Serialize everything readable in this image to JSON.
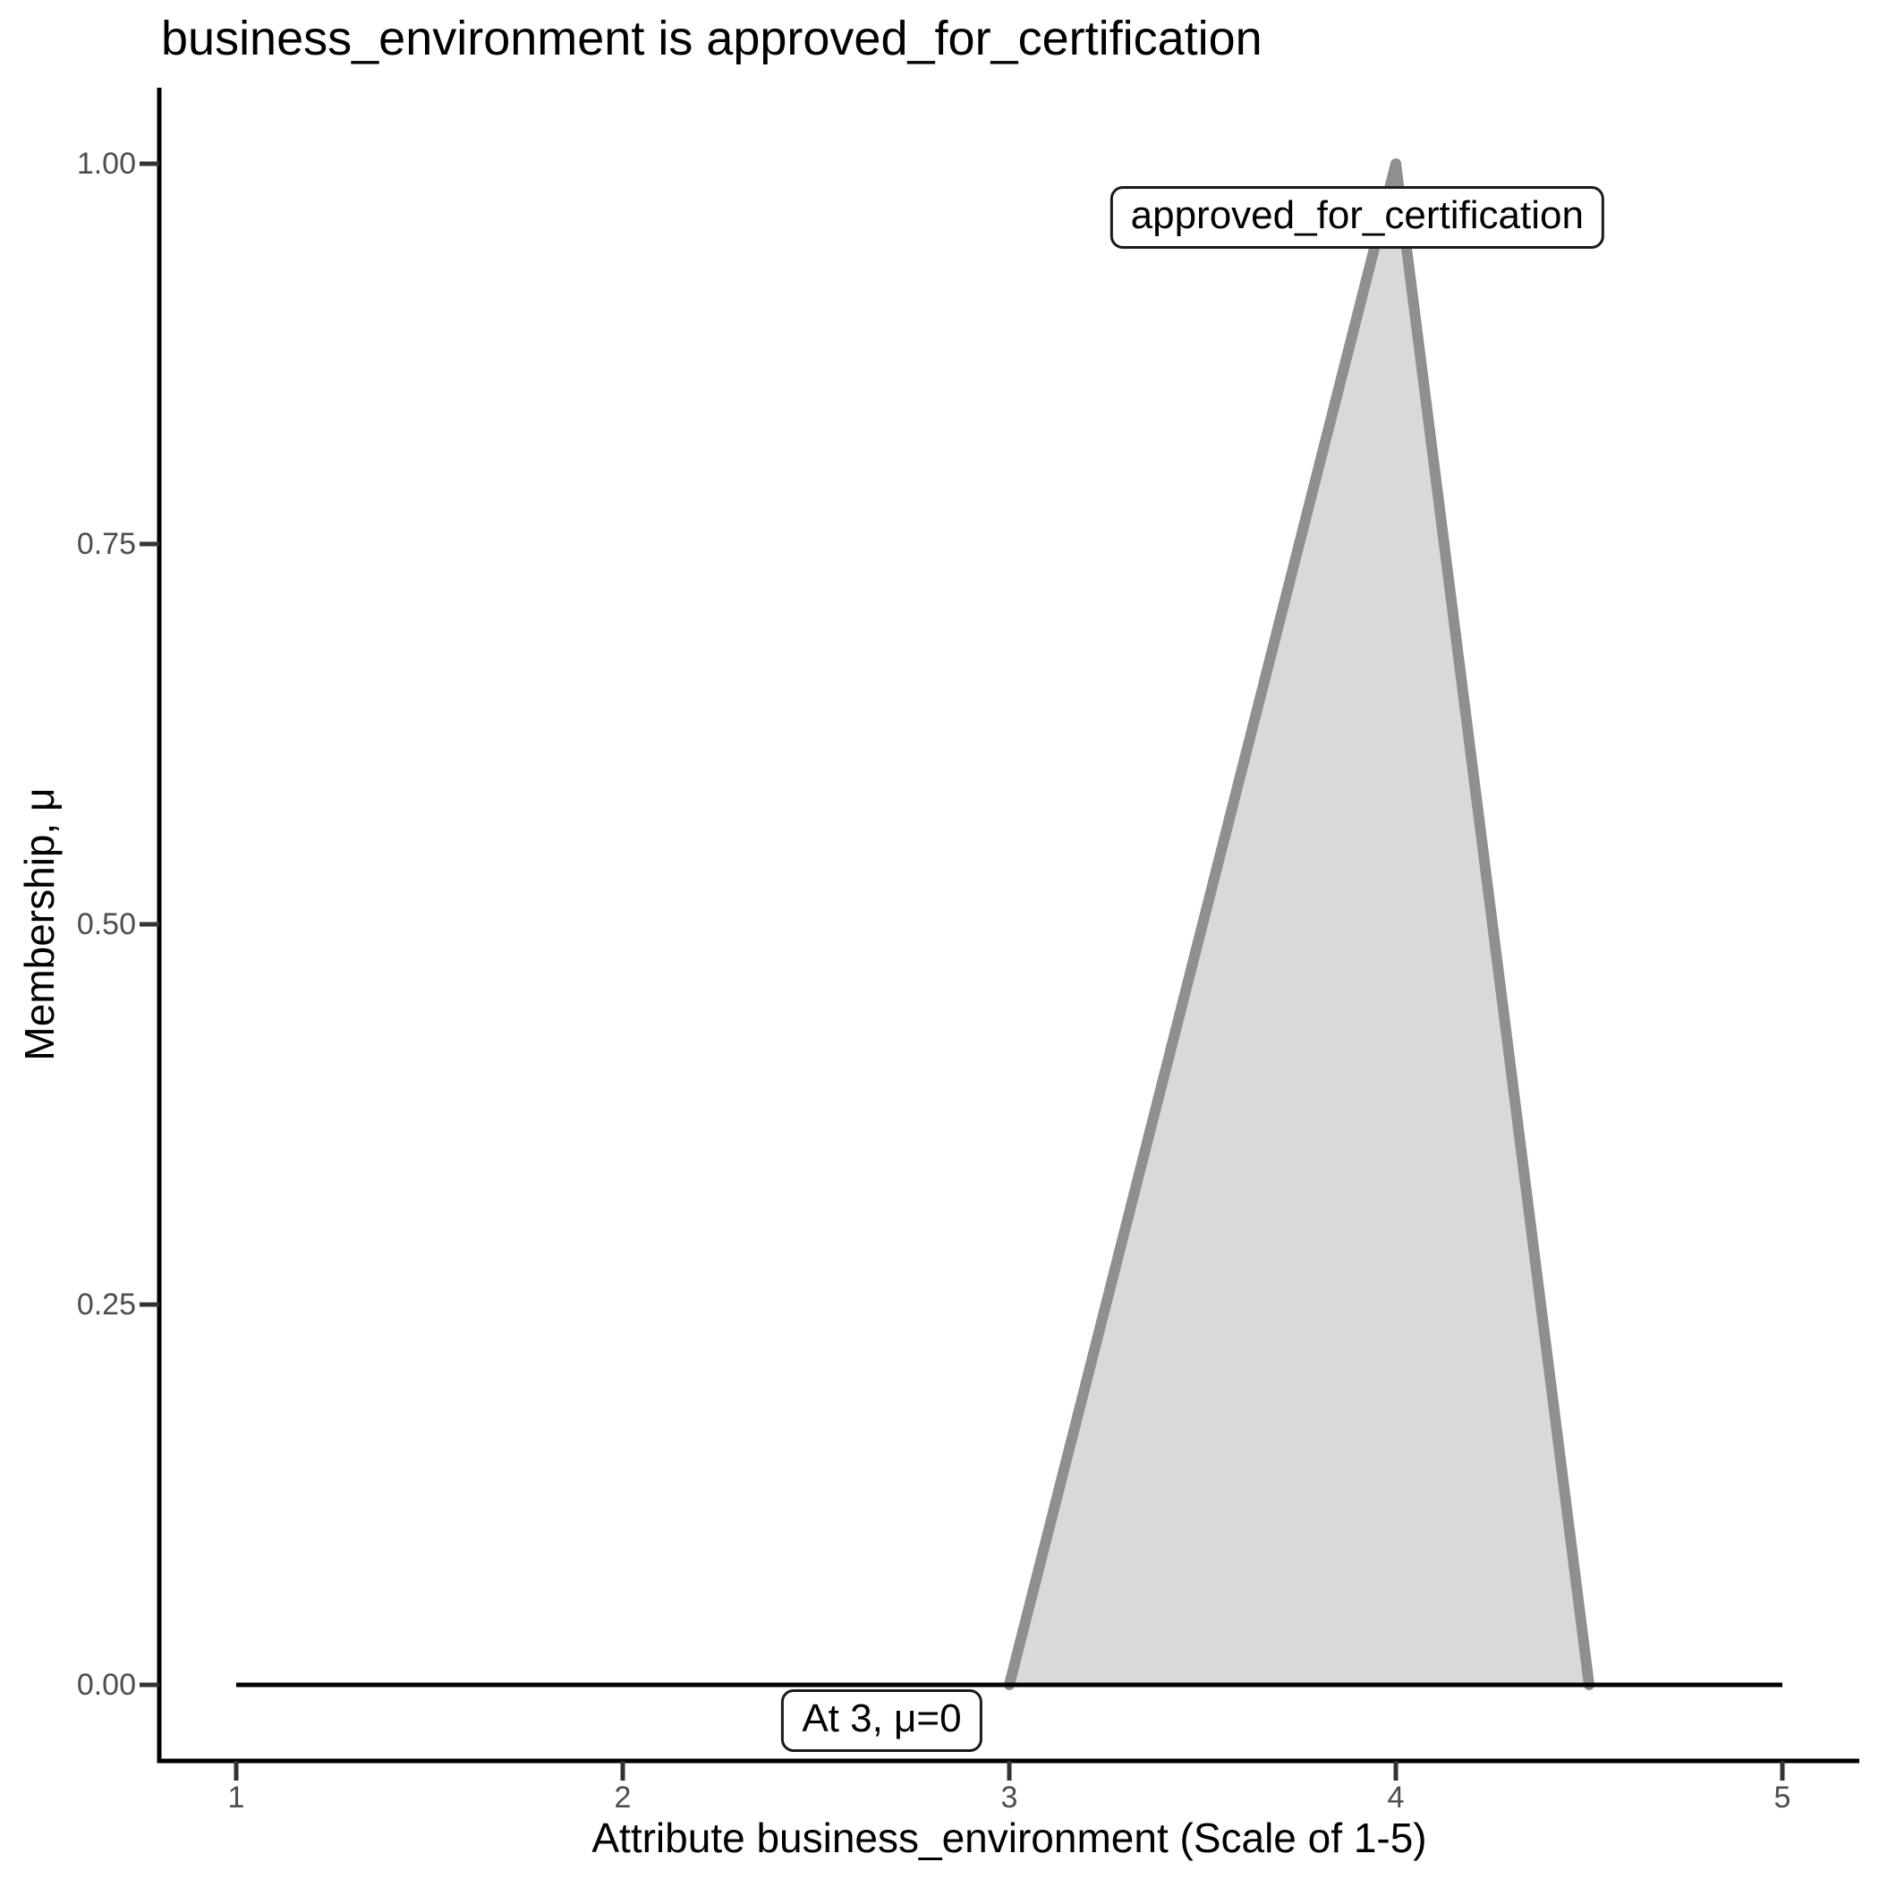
{
  "chart_data": {
    "type": "area",
    "title": "business_environment is approved_for_certification",
    "xlabel": "Attribute business_environment (Scale of 1-5)",
    "ylabel": "Membership, μ",
    "xlim": [
      1,
      5
    ],
    "ylim": [
      0,
      1
    ],
    "grid": false,
    "legend": false,
    "x_ticks": [
      {
        "v": 1,
        "label": "1"
      },
      {
        "v": 2,
        "label": "2"
      },
      {
        "v": 3,
        "label": "3"
      },
      {
        "v": 4,
        "label": "4"
      },
      {
        "v": 5,
        "label": "5"
      }
    ],
    "y_ticks": [
      {
        "v": 0,
        "label": "0.00"
      },
      {
        "v": 0.25,
        "label": "0.25"
      },
      {
        "v": 0.5,
        "label": "0.50"
      },
      {
        "v": 0.75,
        "label": "0.75"
      },
      {
        "v": 1,
        "label": "1.00"
      }
    ],
    "series": [
      {
        "name": "approved_for_certification",
        "shape": "triangular membership function",
        "points": [
          [
            3,
            0
          ],
          [
            4,
            1
          ],
          [
            4.5,
            0
          ]
        ],
        "fill": "#d9d9d9",
        "stroke": "#8f8f8f"
      }
    ],
    "baseline": {
      "from": [
        1,
        0
      ],
      "to": [
        5,
        0
      ],
      "color": "#000000"
    },
    "annotations": [
      {
        "text": "approved_for_certification",
        "x": 3.9,
        "y": 0.965
      },
      {
        "text": "At 3, μ=0",
        "x": 2.67,
        "y": -0.0235
      }
    ]
  },
  "colors": {
    "background": "#ffffff",
    "axis": "#000000",
    "tick_mark": "#333333",
    "tick_label": "#4d4d4d",
    "area_fill": "#d9d9d9",
    "area_stroke": "#8f8f8f",
    "annotation_border": "#1a1a1a",
    "text": "#000000"
  }
}
